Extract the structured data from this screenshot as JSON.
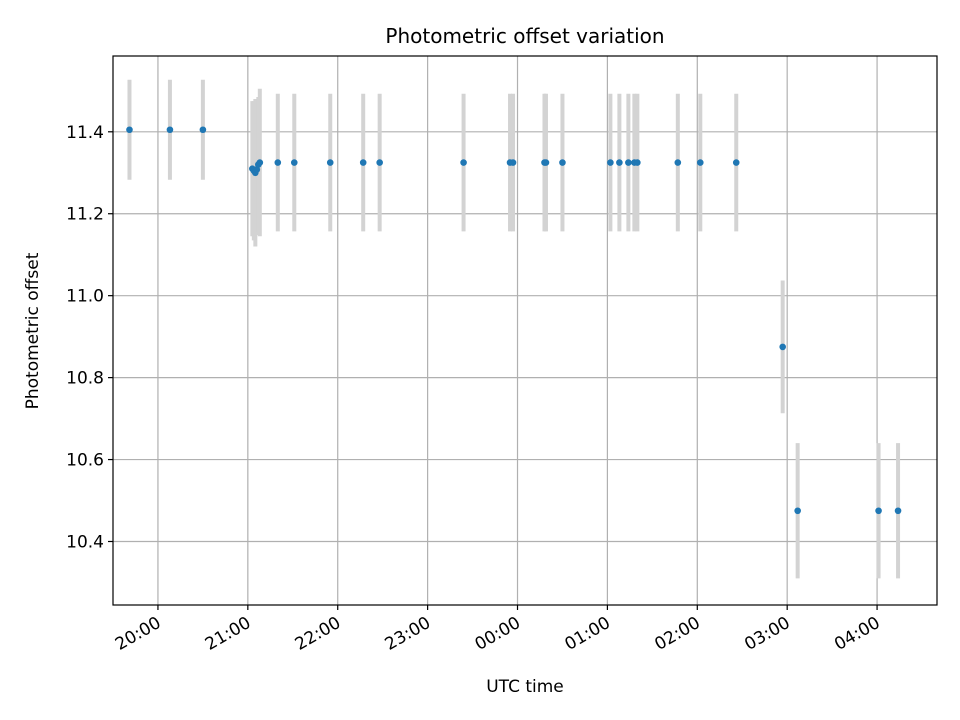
{
  "chart_data": {
    "type": "scatter",
    "title": "Photometric offset variation",
    "xlabel": "UTC time",
    "ylabel": "Photometric offset",
    "x_range": [
      "19:30",
      "04:40"
    ],
    "ylim": [
      10.245,
      11.585
    ],
    "x_ticks": [
      "20:00",
      "21:00",
      "22:00",
      "23:00",
      "00:00",
      "01:00",
      "02:00",
      "03:00",
      "04:00"
    ],
    "y_ticks": [
      10.4,
      10.6,
      10.8,
      11.0,
      11.2,
      11.4
    ],
    "y_tick_labels": [
      "10.4",
      "10.6",
      "10.8",
      "11.0",
      "11.2",
      "11.4"
    ],
    "x_tick_label_rotation_deg": 30,
    "grid": true,
    "legend": "none",
    "marker_color": "#1f77b4",
    "errorbar_color": "#d3d3d3",
    "series": [
      {
        "points": [
          {
            "x": "19:41",
            "y": 11.405,
            "yerr": 0.122
          },
          {
            "x": "20:08",
            "y": 11.405,
            "yerr": 0.122
          },
          {
            "x": "20:30",
            "y": 11.405,
            "yerr": 0.122
          },
          {
            "x": "21:03",
            "y": 11.31,
            "yerr": 0.165
          },
          {
            "x": "21:04",
            "y": 11.305,
            "yerr": 0.17
          },
          {
            "x": "21:05",
            "y": 11.3,
            "yerr": 0.18
          },
          {
            "x": "21:06",
            "y": 11.308,
            "yerr": 0.16
          },
          {
            "x": "21:07",
            "y": 11.32,
            "yerr": 0.165
          },
          {
            "x": "21:08",
            "y": 11.325,
            "yerr": 0.18
          },
          {
            "x": "21:20",
            "y": 11.325,
            "yerr": 0.168
          },
          {
            "x": "21:31",
            "y": 11.325,
            "yerr": 0.168
          },
          {
            "x": "21:55",
            "y": 11.325,
            "yerr": 0.168
          },
          {
            "x": "22:17",
            "y": 11.325,
            "yerr": 0.168
          },
          {
            "x": "22:28",
            "y": 11.325,
            "yerr": 0.168
          },
          {
            "x": "23:24",
            "y": 11.325,
            "yerr": 0.168
          },
          {
            "x": "23:55",
            "y": 11.325,
            "yerr": 0.168
          },
          {
            "x": "23:57",
            "y": 11.325,
            "yerr": 0.168
          },
          {
            "x": "00:18",
            "y": 11.325,
            "yerr": 0.168
          },
          {
            "x": "00:19",
            "y": 11.325,
            "yerr": 0.168
          },
          {
            "x": "00:30",
            "y": 11.325,
            "yerr": 0.168
          },
          {
            "x": "01:02",
            "y": 11.325,
            "yerr": 0.168
          },
          {
            "x": "01:08",
            "y": 11.325,
            "yerr": 0.168
          },
          {
            "x": "01:14",
            "y": 11.325,
            "yerr": 0.168
          },
          {
            "x": "01:18",
            "y": 11.325,
            "yerr": 0.168
          },
          {
            "x": "01:20",
            "y": 11.325,
            "yerr": 0.168
          },
          {
            "x": "01:47",
            "y": 11.325,
            "yerr": 0.168
          },
          {
            "x": "02:02",
            "y": 11.325,
            "yerr": 0.168
          },
          {
            "x": "02:26",
            "y": 11.325,
            "yerr": 0.168
          },
          {
            "x": "02:57",
            "y": 10.875,
            "yerr": 0.162
          },
          {
            "x": "03:07",
            "y": 10.475,
            "yerr": 0.165
          },
          {
            "x": "04:01",
            "y": 10.475,
            "yerr": 0.165
          },
          {
            "x": "04:14",
            "y": 10.475,
            "yerr": 0.165
          }
        ]
      }
    ]
  }
}
